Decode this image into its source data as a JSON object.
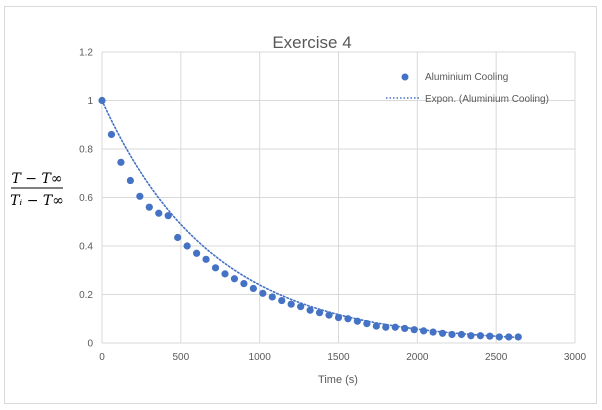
{
  "chart_data": {
    "type": "scatter",
    "title": "Exercise 4",
    "xlabel": "Time (s)",
    "ylabel": {
      "numerator": "T − T∞",
      "denominator": "Tᵢ − T∞"
    },
    "xlim": [
      0,
      3000
    ],
    "ylim": [
      0,
      1.2
    ],
    "x_ticks": [
      "0",
      "500",
      "1000",
      "1500",
      "2000",
      "2500",
      "3000"
    ],
    "y_ticks": [
      "0",
      "0.2",
      "0.4",
      "0.6",
      "0.8",
      "1",
      "1.2"
    ],
    "grid": true,
    "legend_position": "top-right",
    "series": [
      {
        "name": "Aluminium Cooling",
        "kind": "markers",
        "color": "#4472C4",
        "x": [
          0,
          60,
          120,
          180,
          240,
          300,
          360,
          420,
          480,
          540,
          600,
          660,
          720,
          780,
          840,
          900,
          960,
          1020,
          1080,
          1140,
          1200,
          1260,
          1320,
          1380,
          1440,
          1500,
          1560,
          1620,
          1680,
          1740,
          1800,
          1860,
          1920,
          1980,
          2040,
          2100,
          2160,
          2220,
          2280,
          2340,
          2400,
          2460,
          2520,
          2580,
          2640
        ],
        "y": [
          1.0,
          0.86,
          0.745,
          0.67,
          0.605,
          0.56,
          0.535,
          0.525,
          0.435,
          0.4,
          0.37,
          0.345,
          0.31,
          0.285,
          0.265,
          0.245,
          0.225,
          0.205,
          0.19,
          0.175,
          0.16,
          0.15,
          0.135,
          0.125,
          0.115,
          0.105,
          0.1,
          0.09,
          0.08,
          0.07,
          0.065,
          0.065,
          0.06,
          0.055,
          0.05,
          0.045,
          0.04,
          0.035,
          0.035,
          0.03,
          0.03,
          0.028,
          0.025,
          0.025,
          0.025
        ]
      },
      {
        "name": "Expon. (Aluminium Cooling)",
        "kind": "trendline-dotted",
        "color": "#4472C4",
        "equation_form": "y = exp(-k·x)",
        "k": 0.00143,
        "x_range": [
          0,
          2640
        ]
      }
    ]
  }
}
